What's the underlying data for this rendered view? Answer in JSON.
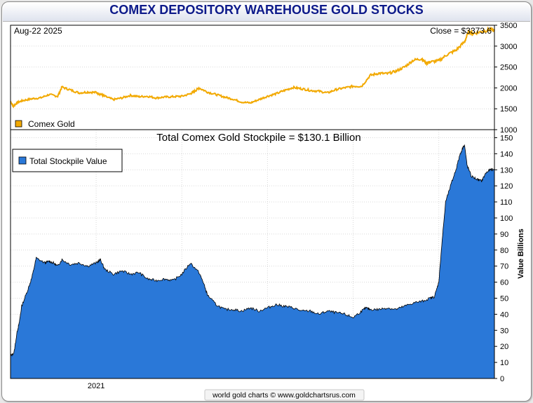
{
  "title": "COMEX DEPOSITORY WAREHOUSE GOLD STOCKS",
  "footer": "world gold charts © www.goldchartsrus.com",
  "colors": {
    "gold_line": "#f2a900",
    "stockpile_fill": "#2a78d8",
    "title_text": "#0d1a8a"
  },
  "chart_data": [
    {
      "type": "line",
      "date_label": "Aug-22  2025",
      "close_label": "Close = $3373.6",
      "legend": [
        {
          "name": "Comex Gold",
          "color": "#f2a900"
        }
      ],
      "ylim": [
        1000,
        3500
      ],
      "yticks": [
        "1000",
        "1500",
        "2000",
        "2500",
        "3000",
        "3500"
      ],
      "xlim": [
        2020.0,
        2025.65
      ],
      "series": [
        {
          "name": "Comex Gold",
          "x": [
            2020.0,
            2020.03,
            2020.08,
            2020.15,
            2020.25,
            2020.35,
            2020.45,
            2020.55,
            2020.6,
            2020.7,
            2020.8,
            2020.9,
            2021.0,
            2021.05,
            2021.1,
            2021.2,
            2021.3,
            2021.4,
            2021.5,
            2021.6,
            2021.7,
            2021.8,
            2021.9,
            2022.0,
            2022.1,
            2022.15,
            2022.2,
            2022.3,
            2022.4,
            2022.5,
            2022.6,
            2022.7,
            2022.8,
            2022.9,
            2023.0,
            2023.1,
            2023.2,
            2023.3,
            2023.4,
            2023.5,
            2023.6,
            2023.7,
            2023.8,
            2023.9,
            2024.0,
            2024.1,
            2024.2,
            2024.3,
            2024.4,
            2024.5,
            2024.6,
            2024.7,
            2024.8,
            2024.85,
            2024.9,
            2025.0,
            2025.1,
            2025.2,
            2025.3,
            2025.35,
            2025.4,
            2025.5,
            2025.6,
            2025.65
          ],
          "y": [
            1680,
            1560,
            1650,
            1700,
            1740,
            1760,
            1840,
            1800,
            2020,
            1950,
            1880,
            1900,
            1890,
            1850,
            1800,
            1720,
            1760,
            1820,
            1790,
            1800,
            1760,
            1780,
            1790,
            1800,
            1860,
            1920,
            2000,
            1900,
            1840,
            1780,
            1730,
            1660,
            1640,
            1720,
            1800,
            1860,
            1940,
            2010,
            1980,
            1940,
            1920,
            1880,
            1960,
            2000,
            2040,
            2040,
            2300,
            2350,
            2340,
            2400,
            2500,
            2660,
            2700,
            2600,
            2620,
            2650,
            2800,
            2900,
            3100,
            3350,
            3300,
            3350,
            3400,
            3373.6
          ]
        }
      ]
    },
    {
      "type": "area",
      "title": "Total Comex Gold Stockpile = $130.1 Billion",
      "ylabel": "Value Billions",
      "legend": [
        {
          "name": "Total Stockpile Value",
          "color": "#2a78d8"
        }
      ],
      "ylim": [
        0,
        155
      ],
      "yticks": [
        "0",
        "10",
        "20",
        "30",
        "40",
        "50",
        "60",
        "70",
        "80",
        "90",
        "100",
        "110",
        "120",
        "130",
        "140",
        "150"
      ],
      "xtick_labels": [
        {
          "x": 2021.0,
          "label": "2021"
        }
      ],
      "xlim": [
        2020.0,
        2025.65
      ],
      "series": [
        {
          "name": "Total Stockpile Value",
          "x": [
            2020.0,
            2020.04,
            2020.08,
            2020.1,
            2020.13,
            2020.2,
            2020.25,
            2020.3,
            2020.4,
            2020.45,
            2020.5,
            2020.55,
            2020.6,
            2020.7,
            2020.8,
            2020.9,
            2021.0,
            2021.05,
            2021.1,
            2021.2,
            2021.3,
            2021.4,
            2021.5,
            2021.6,
            2021.7,
            2021.8,
            2021.9,
            2022.0,
            2022.1,
            2022.2,
            2022.25,
            2022.3,
            2022.4,
            2022.5,
            2022.6,
            2022.7,
            2022.8,
            2022.9,
            2023.0,
            2023.1,
            2023.2,
            2023.3,
            2023.4,
            2023.5,
            2023.6,
            2023.7,
            2023.8,
            2023.9,
            2024.0,
            2024.1,
            2024.15,
            2024.2,
            2024.3,
            2024.4,
            2024.5,
            2024.6,
            2024.7,
            2024.8,
            2024.9,
            2024.95,
            2025.0,
            2025.03,
            2025.08,
            2025.15,
            2025.2,
            2025.25,
            2025.3,
            2025.33,
            2025.38,
            2025.45,
            2025.5,
            2025.55,
            2025.6,
            2025.65
          ],
          "y": [
            14,
            16,
            30,
            34,
            45,
            55,
            63,
            75,
            72,
            73,
            72,
            70,
            74,
            71,
            72,
            70,
            72,
            74,
            68,
            65,
            67,
            65,
            66,
            62,
            61,
            62,
            61,
            65,
            72,
            66,
            60,
            52,
            46,
            43,
            43,
            42,
            44,
            42,
            44,
            46,
            45,
            44,
            42,
            42,
            40,
            42,
            41,
            40,
            38,
            42,
            44,
            43,
            43,
            44,
            43,
            45,
            47,
            48,
            50,
            51,
            60,
            80,
            110,
            122,
            130,
            140,
            146,
            133,
            126,
            124,
            123,
            128,
            130,
            130.1
          ]
        }
      ]
    }
  ]
}
